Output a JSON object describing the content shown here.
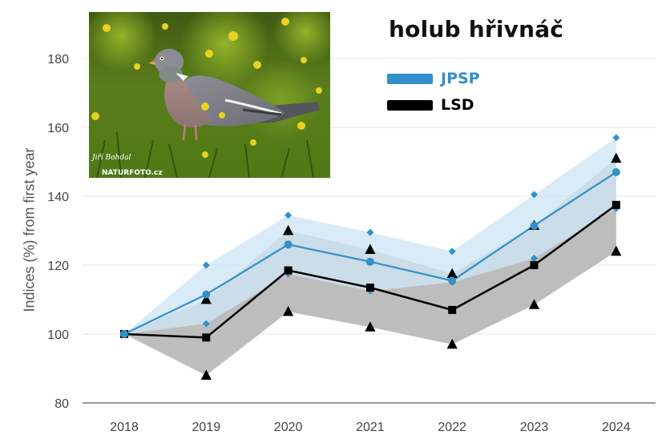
{
  "species_title": "holub hřivnáč",
  "photo": {
    "credit_name": "Jiří Bohdal",
    "credit_site": "NATURFOTO.cz"
  },
  "colors": {
    "jpsp": "#3390c9",
    "jpsp_band": "#cde6f4",
    "lsd": "#000000",
    "lsd_band": "#bdbdbd",
    "grid": "#e6e6e6"
  },
  "chart_data": {
    "type": "line",
    "title": "holub hřivnáč",
    "ylabel": "Indices (%) from first year",
    "xlabel": "",
    "categories": [
      "2018",
      "2019",
      "2020",
      "2021",
      "2022",
      "2023",
      "2024"
    ],
    "yticks": [
      80,
      100,
      120,
      140,
      160,
      180
    ],
    "ylim": [
      80,
      190
    ],
    "grid": true,
    "legend": "top-right",
    "series": [
      {
        "name": "JPSP",
        "color": "#3390c9",
        "marker": "circle",
        "values": [
          100,
          111.5,
          126,
          121,
          115.5,
          131.5,
          147
        ],
        "upper": [
          100,
          120,
          134.5,
          129.5,
          124,
          140.5,
          157
        ],
        "lower": [
          100,
          103,
          117.5,
          112.5,
          115,
          122,
          136.5
        ]
      },
      {
        "name": "LSD",
        "color": "#000000",
        "marker": "square",
        "values": [
          100,
          99,
          118.5,
          113.5,
          107,
          120,
          137.5
        ],
        "upper": [
          100,
          110,
          130,
          124.5,
          117.5,
          131.5,
          151
        ],
        "lower": [
          100,
          88,
          106.5,
          102,
          97,
          108.5,
          124
        ]
      }
    ]
  }
}
